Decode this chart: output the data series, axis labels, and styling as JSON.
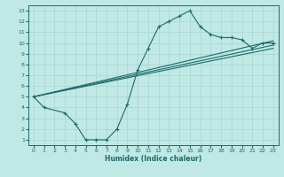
{
  "xlabel": "Humidex (Indice chaleur)",
  "ylabel": "",
  "xlim": [
    -0.5,
    23.5
  ],
  "ylim": [
    0.5,
    13.5
  ],
  "xticks": [
    0,
    1,
    2,
    3,
    4,
    5,
    6,
    7,
    8,
    9,
    10,
    11,
    12,
    13,
    14,
    15,
    16,
    17,
    18,
    19,
    20,
    21,
    22,
    23
  ],
  "yticks": [
    1,
    2,
    3,
    4,
    5,
    6,
    7,
    8,
    9,
    10,
    11,
    12,
    13
  ],
  "bg_color": "#c0e8e4",
  "line_color": "#1a6b6b",
  "grid_color": "#a8d4d0",
  "curve1_x": [
    0,
    1,
    3,
    4,
    5,
    6,
    7,
    8,
    9,
    10,
    11,
    12,
    13,
    14,
    15,
    16,
    17,
    18,
    19,
    20,
    21,
    22,
    23
  ],
  "curve1_y": [
    5,
    4,
    3.5,
    2.5,
    1,
    1,
    1,
    2,
    4.3,
    7.5,
    9.5,
    11.5,
    12,
    12.5,
    13,
    11.5,
    10.8,
    10.5,
    10.5,
    10.3,
    9.5,
    10,
    10
  ],
  "line2_x": [
    0,
    23
  ],
  "line2_y": [
    5,
    10.2
  ],
  "line3_x": [
    0,
    23
  ],
  "line3_y": [
    5,
    9.8
  ],
  "line4_x": [
    0,
    23
  ],
  "line4_y": [
    5,
    9.5
  ]
}
